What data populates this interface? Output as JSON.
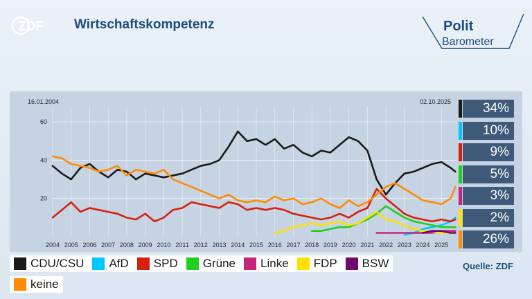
{
  "header": {
    "logo_text": "ZDF",
    "title": "Wirtschaftskompetenz",
    "brand_line1": "Polit",
    "brand_line2": "Barometer"
  },
  "chart_data": {
    "type": "line",
    "date_start": "16.01.2004",
    "date_end": "02.10.2025",
    "x_ticks": [
      "2004",
      "2005",
      "2006",
      "2007",
      "2008",
      "2009",
      "2010",
      "2011",
      "2012",
      "2013",
      "2014",
      "2015",
      "2016",
      "2017",
      "2018",
      "2019",
      "2020",
      "2021",
      "2022",
      "2023",
      "2024",
      "2025"
    ],
    "y_ticks": [
      20,
      40,
      60
    ],
    "ylim": [
      0,
      68
    ],
    "grid": true,
    "x": [
      2004.0,
      2004.5,
      2005.0,
      2005.5,
      2006.0,
      2006.5,
      2007.0,
      2007.5,
      2008.0,
      2008.5,
      2009.0,
      2009.5,
      2010.0,
      2010.5,
      2011.0,
      2011.5,
      2012.0,
      2012.5,
      2013.0,
      2013.5,
      2014.0,
      2014.5,
      2015.0,
      2015.5,
      2016.0,
      2016.5,
      2017.0,
      2017.5,
      2018.0,
      2018.5,
      2019.0,
      2019.5,
      2020.0,
      2020.5,
      2021.0,
      2021.5,
      2022.0,
      2022.5,
      2023.0,
      2023.5,
      2024.0,
      2024.5,
      2025.0,
      2025.5,
      2025.75
    ],
    "series": [
      {
        "name": "CDU/CSU",
        "color": "#1a1a1a",
        "values": [
          37,
          33,
          30,
          36,
          38,
          34,
          31,
          35,
          34,
          30,
          33,
          32,
          31,
          32,
          33,
          35,
          37,
          38,
          40,
          47,
          55,
          50,
          51,
          48,
          51,
          46,
          48,
          44,
          42,
          45,
          44,
          48,
          52,
          50,
          45,
          30,
          22,
          28,
          33,
          34,
          36,
          38,
          39,
          36,
          34
        ]
      },
      {
        "name": "AfD",
        "color": "#00c8ff",
        "values": [
          null,
          null,
          null,
          null,
          null,
          null,
          null,
          null,
          null,
          null,
          null,
          null,
          null,
          null,
          null,
          null,
          null,
          null,
          null,
          null,
          null,
          null,
          null,
          null,
          null,
          null,
          null,
          null,
          null,
          null,
          null,
          null,
          null,
          null,
          null,
          null,
          null,
          null,
          1,
          2,
          4,
          5,
          6,
          8,
          10
        ]
      },
      {
        "name": "SPD",
        "color": "#d71f0e",
        "values": [
          10,
          14,
          18,
          13,
          15,
          14,
          13,
          12,
          10,
          9,
          12,
          8,
          10,
          14,
          15,
          18,
          17,
          16,
          15,
          18,
          17,
          14,
          15,
          14,
          15,
          14,
          12,
          11,
          10,
          9,
          10,
          12,
          10,
          13,
          15,
          25,
          20,
          16,
          12,
          10,
          9,
          8,
          9,
          8,
          9
        ]
      },
      {
        "name": "Grüne",
        "color": "#1fd01f",
        "values": [
          null,
          null,
          null,
          null,
          null,
          null,
          null,
          null,
          null,
          null,
          null,
          null,
          null,
          null,
          null,
          null,
          null,
          null,
          null,
          null,
          null,
          null,
          null,
          null,
          null,
          null,
          null,
          null,
          3,
          3,
          4,
          5,
          5,
          7,
          9,
          12,
          16,
          13,
          10,
          8,
          7,
          6,
          5,
          5,
          5
        ]
      },
      {
        "name": "Linke",
        "color": "#c8247f",
        "values": [
          null,
          null,
          null,
          null,
          null,
          null,
          null,
          null,
          null,
          null,
          null,
          null,
          null,
          null,
          null,
          null,
          null,
          null,
          null,
          null,
          null,
          null,
          null,
          null,
          null,
          null,
          null,
          null,
          null,
          null,
          null,
          null,
          null,
          null,
          null,
          2,
          2,
          2,
          2,
          2,
          2,
          2,
          3,
          3,
          3
        ]
      },
      {
        "name": "FDP",
        "color": "#ffe000",
        "values": [
          null,
          null,
          null,
          null,
          null,
          null,
          null,
          null,
          null,
          null,
          null,
          null,
          null,
          null,
          null,
          null,
          null,
          null,
          null,
          null,
          null,
          null,
          null,
          null,
          2,
          3,
          5,
          6,
          7,
          6,
          7,
          8,
          6,
          7,
          10,
          13,
          9,
          8,
          6,
          4,
          3,
          3,
          2,
          2,
          2
        ]
      },
      {
        "name": "BSW",
        "color": "#6c0b6e",
        "values": [
          null,
          null,
          null,
          null,
          null,
          null,
          null,
          null,
          null,
          null,
          null,
          null,
          null,
          null,
          null,
          null,
          null,
          null,
          null,
          null,
          null,
          null,
          null,
          null,
          null,
          null,
          null,
          null,
          null,
          null,
          null,
          null,
          null,
          null,
          null,
          null,
          null,
          null,
          null,
          null,
          2,
          3,
          3,
          2,
          2
        ]
      },
      {
        "name": "keine",
        "color": "#ff8c00",
        "values": [
          42,
          41,
          38,
          37,
          36,
          34,
          35,
          37,
          32,
          35,
          34,
          33,
          35,
          30,
          28,
          26,
          24,
          22,
          20,
          22,
          19,
          18,
          19,
          18,
          21,
          19,
          20,
          17,
          18,
          20,
          17,
          15,
          19,
          16,
          18,
          22,
          26,
          28,
          25,
          22,
          19,
          18,
          17,
          20,
          26
        ]
      }
    ],
    "latest_values": [
      {
        "name": "CDU/CSU",
        "label": "34%",
        "color": "#1a1a1a"
      },
      {
        "name": "AfD",
        "label": "10%",
        "color": "#00c8ff"
      },
      {
        "name": "SPD",
        "label": "9%",
        "color": "#d71f0e"
      },
      {
        "name": "Grüne",
        "label": "5%",
        "color": "#1fd01f"
      },
      {
        "name": "Linke",
        "label": "3%",
        "color": "#c8247f"
      },
      {
        "name": "FDP",
        "label": "2%",
        "color": "#ffe000"
      },
      {
        "name": "keine",
        "label": "26%",
        "color": "#ff8c00"
      }
    ]
  },
  "legend": {
    "row1": [
      {
        "label": "CDU/CSU",
        "color": "#1a1a1a"
      },
      {
        "label": "AfD",
        "color": "#00c8ff"
      },
      {
        "label": "SPD",
        "color": "#d71f0e"
      },
      {
        "label": "Grüne",
        "color": "#1fd01f"
      },
      {
        "label": "Linke",
        "color": "#c8247f"
      },
      {
        "label": "FDP",
        "color": "#ffe000"
      },
      {
        "label": "BSW",
        "color": "#6c0b6e"
      }
    ],
    "row2": [
      {
        "label": "keine",
        "color": "#ff8c00"
      }
    ]
  },
  "source": "Quelle: ZDF"
}
